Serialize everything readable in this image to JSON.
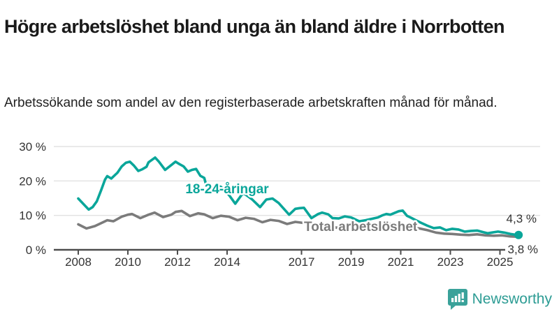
{
  "header": {
    "title": "Högre arbetslöshet bland unga än bland äldre i Norrbotten",
    "subtitle": "Arbetssökande som andel av den registerbaserade arbetskraften månad för månad."
  },
  "colors": {
    "youth_line": "#0aa69a",
    "total_line": "#7b7b7b",
    "axis": "#4d4d4d",
    "grid": "#e2e2e2",
    "tick_text": "#333333",
    "title_text": "#1a1a1a",
    "brand": "#2d9c94"
  },
  "chart_data": {
    "type": "line",
    "title": "Högre arbetslöshet bland unga än bland äldre i Norrbotten",
    "subtitle": "Arbetssökande som andel av den registerbaserade arbetskraften månad för månad.",
    "x_axis": {
      "ticks": [
        2008,
        2010,
        2012,
        2014,
        2017,
        2019,
        2021,
        2023,
        2025
      ],
      "tick_labels": [
        "2008",
        "2010",
        "2012",
        "2014",
        "2017",
        "2019",
        "2021",
        "2023",
        "2025"
      ],
      "range": [
        2007.0,
        2026.6
      ]
    },
    "y_axis": {
      "ticks": [
        0,
        10,
        20,
        30
      ],
      "tick_labels": [
        "0 %",
        "10 %",
        "20 %",
        "30 %"
      ],
      "range": [
        0,
        30
      ],
      "grid": true
    },
    "legend_position": "inline-labels",
    "series": [
      {
        "name": "Total arbetslöshet",
        "color": "#7b7b7b",
        "end_label": "3,8 %",
        "end_value": 3.8,
        "points": [
          [
            2008.0,
            7.4
          ],
          [
            2008.33,
            6.2
          ],
          [
            2008.67,
            6.9
          ],
          [
            2009.0,
            8.0
          ],
          [
            2009.17,
            8.6
          ],
          [
            2009.42,
            8.3
          ],
          [
            2009.75,
            9.6
          ],
          [
            2010.0,
            10.2
          ],
          [
            2010.17,
            10.4
          ],
          [
            2010.5,
            9.2
          ],
          [
            2010.83,
            10.2
          ],
          [
            2011.08,
            10.8
          ],
          [
            2011.42,
            9.5
          ],
          [
            2011.75,
            10.2
          ],
          [
            2011.92,
            11.0
          ],
          [
            2012.17,
            11.3
          ],
          [
            2012.5,
            9.8
          ],
          [
            2012.83,
            10.6
          ],
          [
            2013.08,
            10.3
          ],
          [
            2013.42,
            9.2
          ],
          [
            2013.75,
            9.9
          ],
          [
            2014.08,
            9.6
          ],
          [
            2014.42,
            8.6
          ],
          [
            2014.75,
            9.3
          ],
          [
            2015.08,
            9.0
          ],
          [
            2015.42,
            8.0
          ],
          [
            2015.75,
            8.7
          ],
          [
            2016.08,
            8.4
          ],
          [
            2016.42,
            7.5
          ],
          [
            2016.75,
            8.1
          ],
          [
            2017.08,
            7.8
          ],
          [
            2017.42,
            6.9
          ],
          [
            2017.75,
            7.4
          ],
          [
            2018.08,
            7.1
          ],
          [
            2018.42,
            6.4
          ],
          [
            2018.75,
            6.8
          ],
          [
            2019.08,
            6.6
          ],
          [
            2019.42,
            6.1
          ],
          [
            2019.75,
            6.5
          ],
          [
            2020.08,
            6.7
          ],
          [
            2020.42,
            7.6
          ],
          [
            2020.75,
            7.4
          ],
          [
            2021.08,
            7.2
          ],
          [
            2021.42,
            6.5
          ],
          [
            2021.75,
            6.2
          ],
          [
            2022.08,
            5.7
          ],
          [
            2022.42,
            5.0
          ],
          [
            2022.75,
            4.7
          ],
          [
            2023.08,
            4.6
          ],
          [
            2023.42,
            4.4
          ],
          [
            2023.75,
            4.3
          ],
          [
            2024.08,
            4.5
          ],
          [
            2024.42,
            4.2
          ],
          [
            2024.75,
            4.1
          ],
          [
            2025.08,
            4.2
          ],
          [
            2025.42,
            3.9
          ],
          [
            2025.75,
            3.8
          ]
        ]
      },
      {
        "name": "18-24-åringar",
        "color": "#0aa69a",
        "end_label": "4,3 %",
        "end_value": 4.3,
        "end_dot": true,
        "points": [
          [
            2008.0,
            14.9
          ],
          [
            2008.17,
            13.6
          ],
          [
            2008.42,
            11.7
          ],
          [
            2008.58,
            12.4
          ],
          [
            2008.75,
            14.1
          ],
          [
            2008.92,
            17.3
          ],
          [
            2009.08,
            20.4
          ],
          [
            2009.17,
            21.4
          ],
          [
            2009.33,
            20.7
          ],
          [
            2009.58,
            22.4
          ],
          [
            2009.75,
            24.2
          ],
          [
            2009.92,
            25.3
          ],
          [
            2010.08,
            25.6
          ],
          [
            2010.25,
            24.4
          ],
          [
            2010.42,
            22.9
          ],
          [
            2010.58,
            23.4
          ],
          [
            2010.75,
            24.1
          ],
          [
            2010.83,
            25.4
          ],
          [
            2011.0,
            26.3
          ],
          [
            2011.1,
            26.8
          ],
          [
            2011.25,
            25.6
          ],
          [
            2011.5,
            23.2
          ],
          [
            2011.75,
            24.6
          ],
          [
            2011.92,
            25.6
          ],
          [
            2012.08,
            24.9
          ],
          [
            2012.25,
            24.2
          ],
          [
            2012.42,
            22.7
          ],
          [
            2012.58,
            23.2
          ],
          [
            2012.75,
            23.5
          ],
          [
            2012.92,
            21.5
          ],
          [
            2013.08,
            20.9
          ],
          [
            2013.25,
            16.3
          ],
          [
            2013.42,
            17.5
          ],
          [
            2013.58,
            18.6
          ],
          [
            2013.75,
            18.3
          ],
          [
            2013.92,
            17.0
          ],
          [
            2014.08,
            15.9
          ],
          [
            2014.33,
            13.4
          ],
          [
            2014.58,
            15.9
          ],
          [
            2014.67,
            16.4
          ],
          [
            2014.83,
            15.6
          ],
          [
            2015.0,
            14.7
          ],
          [
            2015.33,
            12.4
          ],
          [
            2015.58,
            14.6
          ],
          [
            2015.83,
            14.9
          ],
          [
            2016.08,
            13.6
          ],
          [
            2016.5,
            10.2
          ],
          [
            2016.75,
            11.9
          ],
          [
            2016.92,
            12.1
          ],
          [
            2017.1,
            12.2
          ],
          [
            2017.4,
            9.2
          ],
          [
            2017.67,
            10.4
          ],
          [
            2017.83,
            10.8
          ],
          [
            2018.08,
            10.3
          ],
          [
            2018.25,
            9.2
          ],
          [
            2018.5,
            9.1
          ],
          [
            2018.75,
            9.7
          ],
          [
            2019.0,
            9.4
          ],
          [
            2019.33,
            8.3
          ],
          [
            2019.58,
            8.6
          ],
          [
            2019.83,
            9.0
          ],
          [
            2020.08,
            9.4
          ],
          [
            2020.25,
            10.0
          ],
          [
            2020.42,
            10.4
          ],
          [
            2020.58,
            10.2
          ],
          [
            2020.75,
            10.7
          ],
          [
            2020.92,
            11.2
          ],
          [
            2021.08,
            11.4
          ],
          [
            2021.25,
            9.9
          ],
          [
            2021.42,
            9.3
          ],
          [
            2021.58,
            8.7
          ],
          [
            2021.83,
            7.8
          ],
          [
            2022.08,
            7.0
          ],
          [
            2022.33,
            6.3
          ],
          [
            2022.58,
            6.5
          ],
          [
            2022.83,
            5.7
          ],
          [
            2023.08,
            6.1
          ],
          [
            2023.33,
            5.9
          ],
          [
            2023.58,
            5.3
          ],
          [
            2023.83,
            5.5
          ],
          [
            2024.08,
            5.6
          ],
          [
            2024.33,
            5.1
          ],
          [
            2024.5,
            4.8
          ],
          [
            2024.67,
            5.0
          ],
          [
            2024.92,
            5.3
          ],
          [
            2025.17,
            5.0
          ],
          [
            2025.42,
            4.6
          ],
          [
            2025.6,
            4.4
          ],
          [
            2025.75,
            4.3
          ]
        ]
      }
    ]
  },
  "footer": {
    "brand": "Newsworthy"
  }
}
